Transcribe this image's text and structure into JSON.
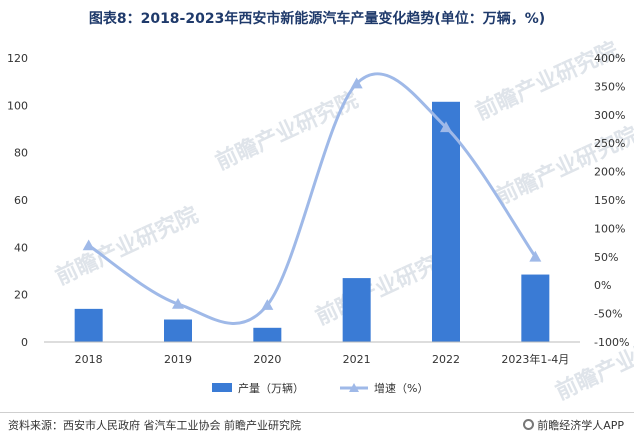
{
  "chart_data": {
    "type": "bar+line",
    "title": "图表8：2018-2023年西安市新能源汽车产量变化趋势(单位：万辆，%)",
    "categories": [
      "2018",
      "2019",
      "2020",
      "2021",
      "2022",
      "2023年1-4月"
    ],
    "series": [
      {
        "name": "产量（万辆）",
        "type": "bar",
        "axis": "left",
        "color": "#3a7bd5",
        "values": [
          14,
          9.5,
          6,
          27,
          101.5,
          28.5
        ]
      },
      {
        "name": "增速（%）",
        "type": "line",
        "axis": "right",
        "color": "#9fb9e8",
        "values": [
          70,
          -33,
          -35,
          355,
          278,
          50
        ]
      }
    ],
    "y_left": {
      "lim": [
        0,
        120
      ],
      "ticks": [
        "0",
        "20",
        "40",
        "60",
        "80",
        "100",
        "120"
      ]
    },
    "y_right": {
      "lim": [
        -100,
        400
      ],
      "ticks": [
        "-100%",
        "-50%",
        "0%",
        "50%",
        "100%",
        "150%",
        "200%",
        "250%",
        "300%",
        "350%",
        "400%"
      ]
    },
    "legend_position": "bottom-center",
    "grid": false
  },
  "watermark": "前瞻产业研究院",
  "footer": {
    "source": "资料来源：西安市人民政府 省汽车工业协会 前瞻产业研究院",
    "brand": "前瞻经济学人APP"
  }
}
